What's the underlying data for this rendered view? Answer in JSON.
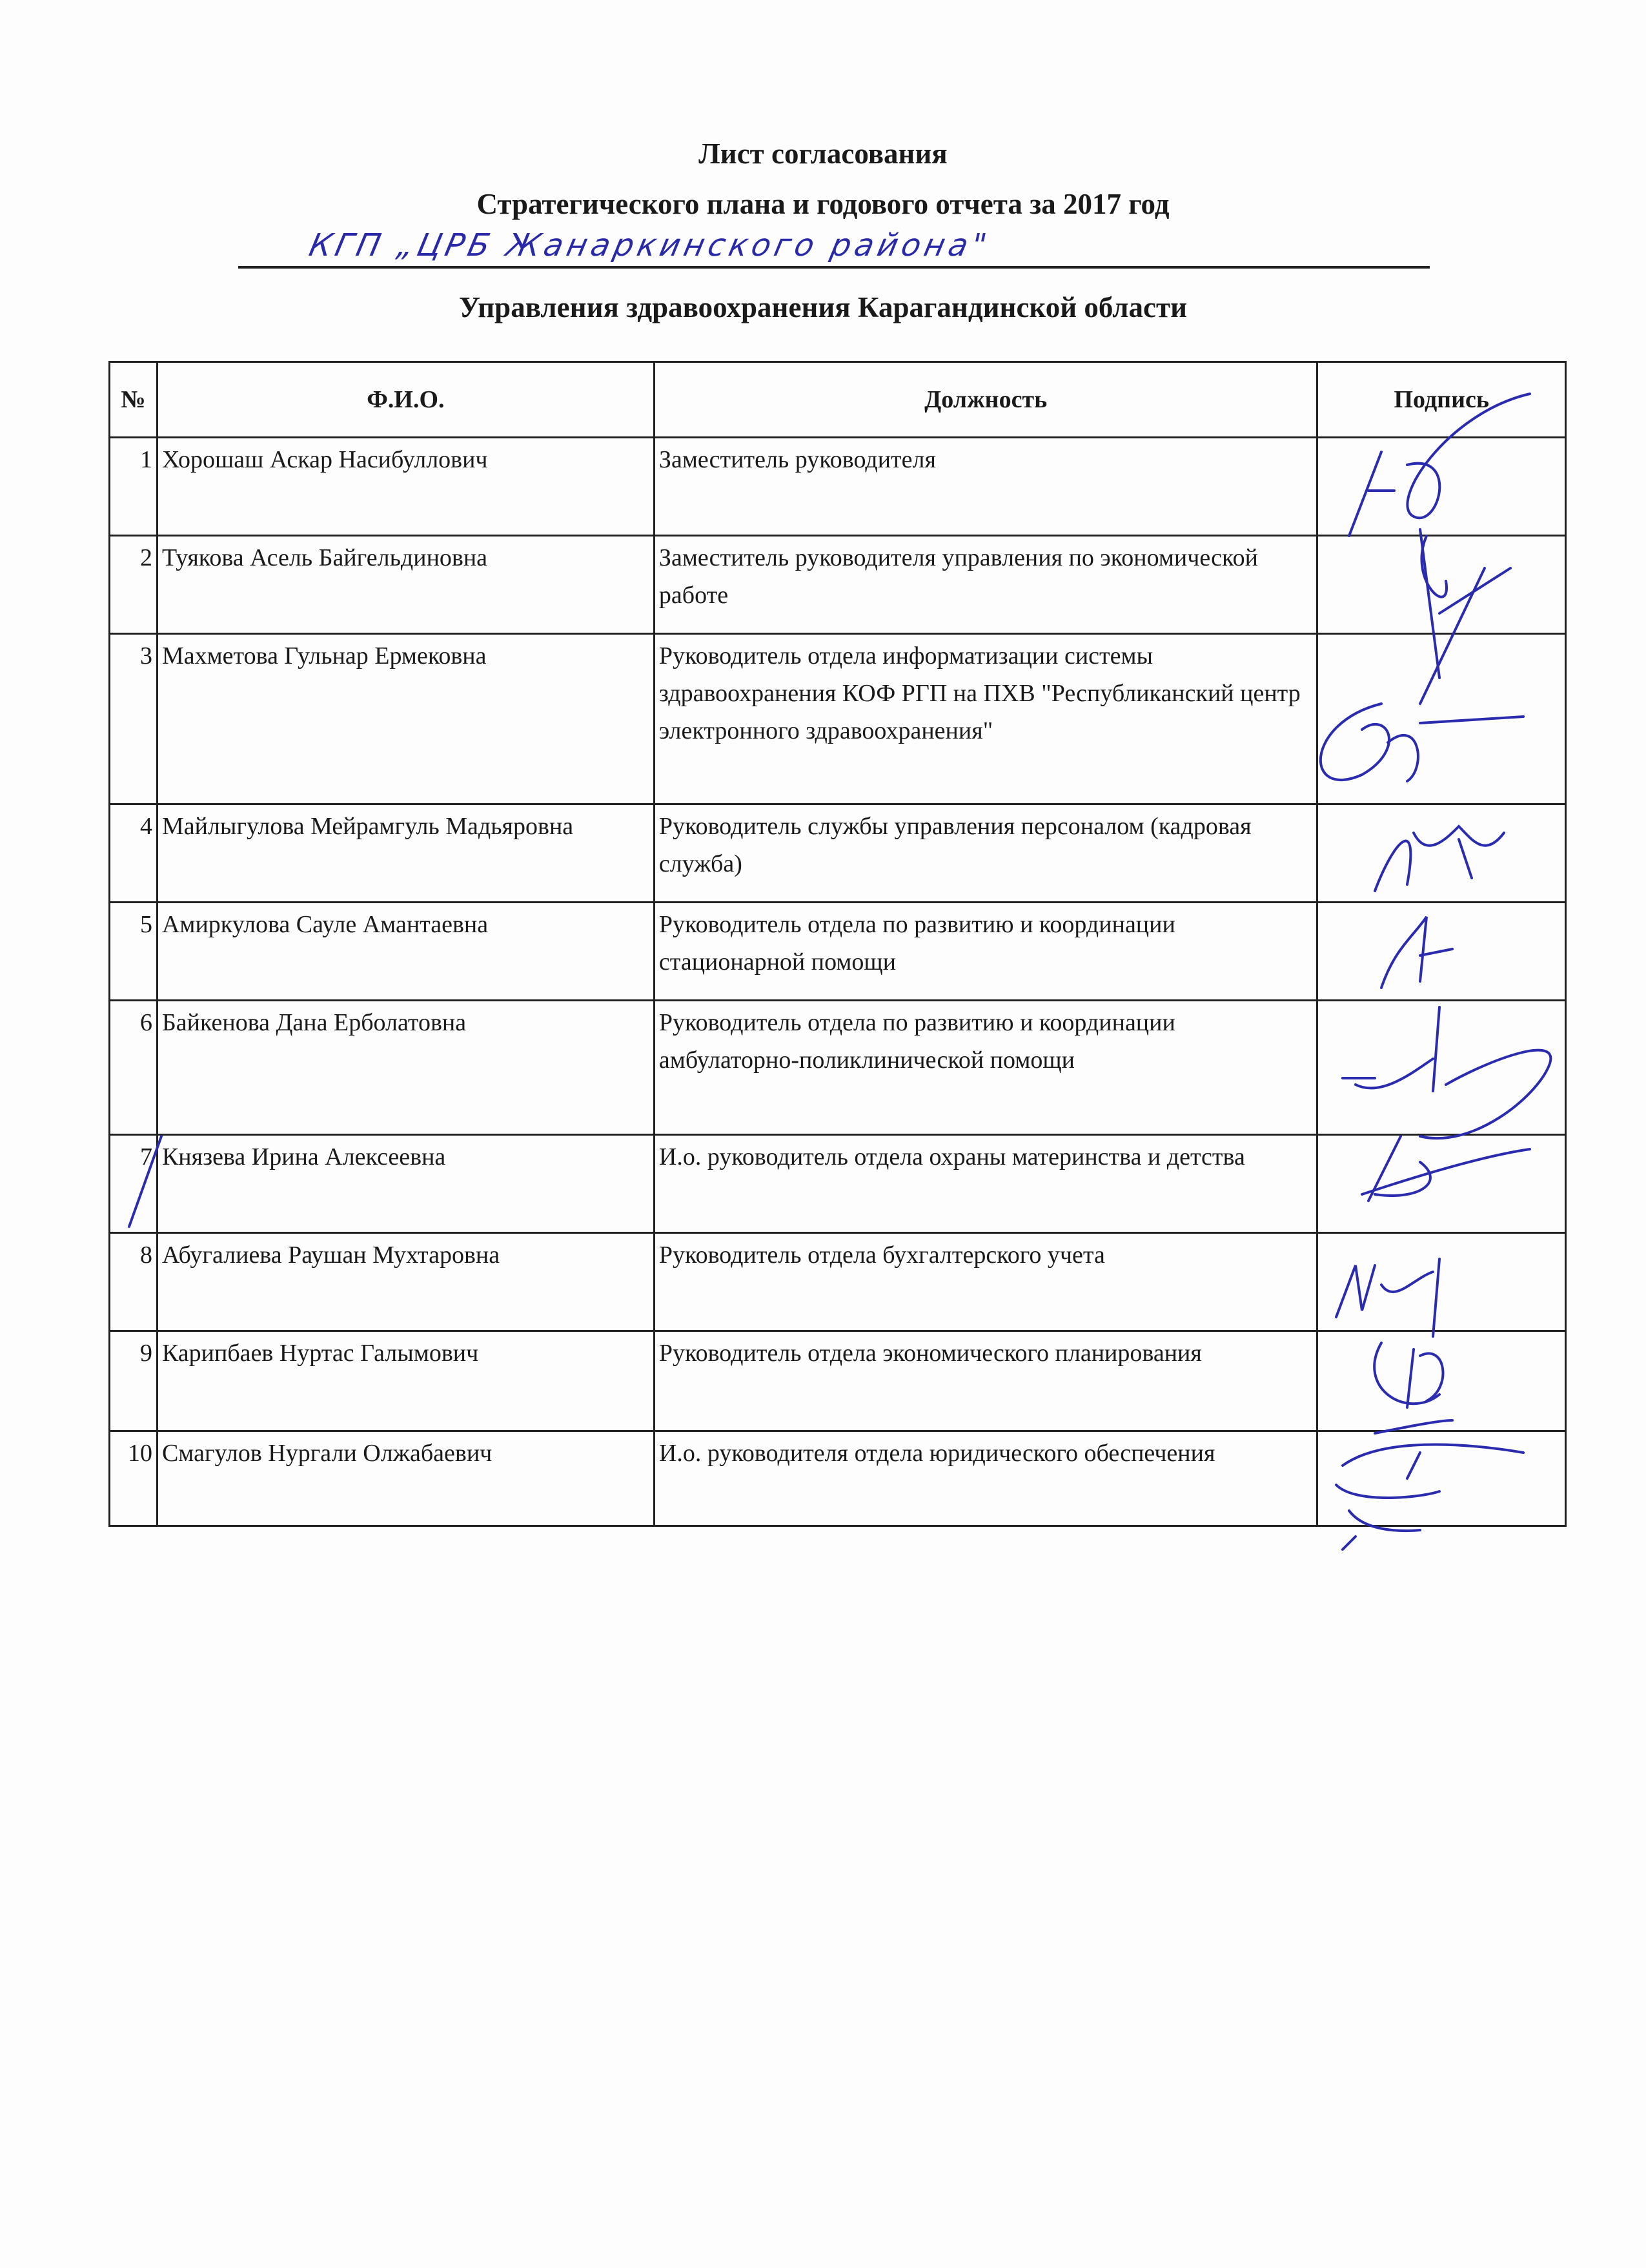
{
  "header": {
    "line1": "Лист согласования",
    "line2": "Стратегического плана и годового отчета за 2017 год",
    "handwritten_org": "КГП „ЦРБ Жанаркинского района\"",
    "line3": "Управления здравоохранения Карагандинской области"
  },
  "table": {
    "columns": [
      "№",
      "Ф.И.О.",
      "Должность",
      "Подпись"
    ],
    "rows": [
      {
        "num": "1",
        "name": "Хорошаш Аскар Насибуллович",
        "position": "Заместитель руководителя"
      },
      {
        "num": "2",
        "name": "Туякова Асель Байгельдиновна",
        "position": "Заместитель руководителя управления по экономической работе"
      },
      {
        "num": "3",
        "name": "Махметова Гульнар Ермековна",
        "position": "Руководитель отдела информатизации системы здравоохранения КОФ РГП на ПХВ \"Республиканский центр электронного здравоохранения\""
      },
      {
        "num": "4",
        "name": "Майлыгулова Мейрамгуль Мадьяровна",
        "position": "Руководитель службы управления персоналом (кадровая служба)"
      },
      {
        "num": "5",
        "name": "Амиркулова Сауле Амантаевна",
        "position": "Руководитель отдела по развитию и координации стационарной помощи"
      },
      {
        "num": "6",
        "name": "Байкенова Дана Ерболатовна",
        "position": "Руководитель отдела по развитию и координации амбулаторно-поликлинической помощи"
      },
      {
        "num": "7",
        "name": "Князева Ирина Алексеевна",
        "position": "И.о. руководитель отдела охраны материнства и детства"
      },
      {
        "num": "8",
        "name": "Абугалиева Раушан Мухтаровна",
        "position": "Руководитель отдела бухгалтерского учета"
      },
      {
        "num": "9",
        "name": "Карипбаев Нуртас Галымович",
        "position": "Руководитель отдела экономического планирования"
      },
      {
        "num": "10",
        "name": "Смагулов Нургали Олжабаевич",
        "position": "И.о. руководителя отдела юридического обеспечения"
      }
    ]
  },
  "colors": {
    "ink": "#2b2bb0",
    "text": "#1a1a1a"
  }
}
